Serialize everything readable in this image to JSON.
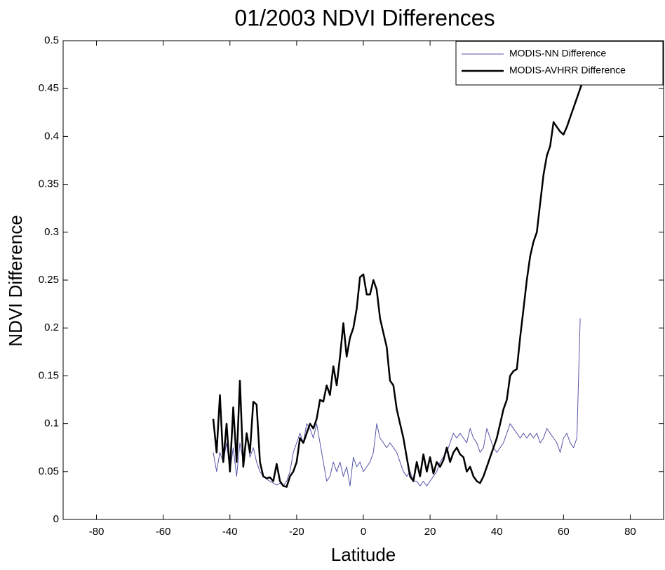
{
  "chart_data": {
    "type": "line",
    "title": "01/2003 NDVI Differences",
    "x_label": "Latitude",
    "y_label": "NDVI Difference",
    "xlim": [
      -90,
      90
    ],
    "xticks": [
      -80,
      -60,
      -40,
      -20,
      0,
      20,
      40,
      60,
      80
    ],
    "ylim": [
      0,
      0.5
    ],
    "yticks": [
      0,
      0.05,
      0.1,
      0.15,
      0.2,
      0.25,
      0.3,
      0.35,
      0.4,
      0.45,
      0.5
    ],
    "legend": "top-right",
    "series": [
      {
        "name": "MODIS-NN Difference",
        "color": "#5555aa",
        "width": 1,
        "x": [
          -45,
          -44,
          -43,
          -42,
          -41,
          -40,
          -39,
          -38,
          -37,
          -36,
          -35,
          -34,
          -33,
          -32,
          -31,
          -30,
          -29,
          -28,
          -27,
          -26,
          -25,
          -24,
          -23,
          -22,
          -21,
          -20,
          -19,
          -18,
          -17,
          -16,
          -15,
          -14,
          -13,
          -12,
          -11,
          -10,
          -9,
          -8,
          -7,
          -6,
          -5,
          -4,
          -3,
          -2,
          -1,
          0,
          1,
          2,
          3,
          4,
          5,
          6,
          7,
          8,
          9,
          10,
          11,
          12,
          13,
          14,
          15,
          16,
          17,
          18,
          19,
          20,
          21,
          22,
          23,
          24,
          25,
          26,
          27,
          28,
          29,
          30,
          31,
          32,
          33,
          34,
          35,
          36,
          37,
          38,
          39,
          40,
          41,
          42,
          43,
          44,
          45,
          46,
          47,
          48,
          49,
          50,
          51,
          52,
          53,
          54,
          55,
          56,
          57,
          58,
          59,
          60,
          61,
          62,
          63,
          64,
          65
        ],
        "values": [
          0.07,
          0.05,
          0.07,
          0.06,
          0.08,
          0.05,
          0.075,
          0.045,
          0.08,
          0.06,
          0.09,
          0.065,
          0.075,
          0.06,
          0.05,
          0.045,
          0.042,
          0.04,
          0.038,
          0.036,
          0.038,
          0.035,
          0.04,
          0.05,
          0.07,
          0.08,
          0.09,
          0.08,
          0.1,
          0.095,
          0.085,
          0.1,
          0.08,
          0.06,
          0.04,
          0.045,
          0.06,
          0.05,
          0.06,
          0.045,
          0.055,
          0.035,
          0.065,
          0.055,
          0.06,
          0.05,
          0.055,
          0.06,
          0.07,
          0.1,
          0.085,
          0.08,
          0.075,
          0.08,
          0.075,
          0.07,
          0.06,
          0.05,
          0.045,
          0.05,
          0.04,
          0.04,
          0.035,
          0.04,
          0.035,
          0.04,
          0.045,
          0.05,
          0.06,
          0.065,
          0.07,
          0.08,
          0.09,
          0.085,
          0.09,
          0.085,
          0.08,
          0.095,
          0.085,
          0.08,
          0.07,
          0.075,
          0.095,
          0.085,
          0.075,
          0.07,
          0.075,
          0.08,
          0.09,
          0.1,
          0.095,
          0.09,
          0.085,
          0.09,
          0.085,
          0.09,
          0.085,
          0.09,
          0.08,
          0.085,
          0.095,
          0.09,
          0.085,
          0.08,
          0.07,
          0.085,
          0.09,
          0.08,
          0.075,
          0.085,
          0.21
        ]
      },
      {
        "name": "MODIS-AVHRR Difference",
        "color": "#000000",
        "width": 2.5,
        "x": [
          -45,
          -44,
          -43,
          -42,
          -41,
          -40,
          -39,
          -38,
          -37,
          -36,
          -35,
          -34,
          -33,
          -32,
          -31,
          -30,
          -29,
          -28,
          -27,
          -26,
          -25,
          -24,
          -23,
          -22,
          -21,
          -20,
          -19,
          -18,
          -17,
          -16,
          -15,
          -14,
          -13,
          -12,
          -11,
          -10,
          -9,
          -8,
          -7,
          -6,
          -5,
          -4,
          -3,
          -2,
          -1,
          0,
          1,
          2,
          3,
          4,
          5,
          6,
          7,
          8,
          9,
          10,
          11,
          12,
          13,
          14,
          15,
          16,
          17,
          18,
          19,
          20,
          21,
          22,
          23,
          24,
          25,
          26,
          27,
          28,
          29,
          30,
          31,
          32,
          33,
          34,
          35,
          36,
          37,
          38,
          39,
          40,
          41,
          42,
          43,
          44,
          45,
          46,
          47,
          48,
          49,
          50,
          51,
          52,
          53,
          54,
          55,
          56,
          57,
          58,
          59,
          60,
          61,
          62,
          63,
          64,
          65,
          66,
          67,
          68
        ],
        "values": [
          0.105,
          0.07,
          0.13,
          0.06,
          0.1,
          0.05,
          0.117,
          0.06,
          0.145,
          0.055,
          0.09,
          0.07,
          0.123,
          0.12,
          0.06,
          0.045,
          0.043,
          0.044,
          0.04,
          0.058,
          0.04,
          0.035,
          0.034,
          0.045,
          0.05,
          0.06,
          0.085,
          0.08,
          0.09,
          0.1,
          0.095,
          0.105,
          0.125,
          0.123,
          0.14,
          0.13,
          0.16,
          0.14,
          0.17,
          0.205,
          0.17,
          0.19,
          0.2,
          0.22,
          0.253,
          0.256,
          0.235,
          0.235,
          0.25,
          0.24,
          0.21,
          0.195,
          0.18,
          0.145,
          0.14,
          0.115,
          0.1,
          0.085,
          0.065,
          0.045,
          0.04,
          0.06,
          0.045,
          0.068,
          0.05,
          0.065,
          0.048,
          0.06,
          0.055,
          0.062,
          0.075,
          0.06,
          0.07,
          0.075,
          0.068,
          0.065,
          0.05,
          0.055,
          0.045,
          0.04,
          0.038,
          0.045,
          0.055,
          0.065,
          0.075,
          0.085,
          0.1,
          0.115,
          0.125,
          0.15,
          0.155,
          0.157,
          0.19,
          0.22,
          0.25,
          0.275,
          0.29,
          0.3,
          0.33,
          0.36,
          0.38,
          0.39,
          0.415,
          0.41,
          0.405,
          0.402,
          0.41,
          0.42,
          0.43,
          0.44,
          0.45,
          0.46,
          0.47,
          0.49
        ]
      }
    ]
  }
}
